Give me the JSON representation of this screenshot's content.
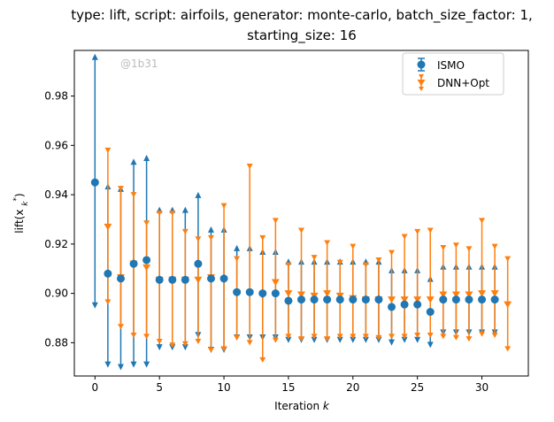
{
  "chart_data": {
    "type": "scatter",
    "title_line1": "type: lift, script: airfoils, generator: monte-carlo, batch_size_factor: 1,",
    "title_line2": "starting_size: 16",
    "xlabel": "Iteration k",
    "ylabel": "lift(x_k*)",
    "xlim": [
      -1.6,
      33.6
    ],
    "ylim": [
      0.8665,
      0.9985
    ],
    "xticks": [
      0,
      5,
      10,
      15,
      20,
      25,
      30
    ],
    "yticks": [
      0.88,
      0.9,
      0.92,
      0.94,
      0.96,
      0.98
    ],
    "ytick_labels": [
      "0.88",
      "0.90",
      "0.92",
      "0.94",
      "0.96",
      "0.98"
    ],
    "watermark": "@1b31",
    "legend_position": "top-right",
    "colors": {
      "ISMO": "#1f77b4",
      "DNN+Opt": "#ff7f0e"
    },
    "series": [
      {
        "name": "ISMO",
        "marker": "circle",
        "x": [
          0,
          1,
          2,
          3,
          4,
          5,
          6,
          7,
          8,
          9,
          10,
          11,
          12,
          13,
          14,
          15,
          16,
          17,
          18,
          19,
          20,
          21,
          22,
          23,
          24,
          25,
          26,
          27,
          28,
          29,
          30,
          31
        ],
        "y": [
          0.945,
          0.908,
          0.906,
          0.912,
          0.9135,
          0.9055,
          0.9055,
          0.9055,
          0.912,
          0.906,
          0.906,
          0.9005,
          0.9005,
          0.9,
          0.9,
          0.897,
          0.8975,
          0.8975,
          0.8975,
          0.8975,
          0.8975,
          0.8975,
          0.8975,
          0.8945,
          0.8955,
          0.8955,
          0.8925,
          0.8975,
          0.8975,
          0.8975,
          0.8975,
          0.8975
        ],
        "lo": [
          0.896,
          0.872,
          0.871,
          0.872,
          0.872,
          0.879,
          0.879,
          0.879,
          0.884,
          0.878,
          0.878,
          0.883,
          0.883,
          0.883,
          0.883,
          0.882,
          0.882,
          0.882,
          0.882,
          0.882,
          0.882,
          0.882,
          0.882,
          0.881,
          0.882,
          0.882,
          0.88,
          0.885,
          0.885,
          0.885,
          0.885,
          0.885
        ],
        "hi": [
          0.995,
          0.9425,
          0.9415,
          0.9525,
          0.954,
          0.933,
          0.933,
          0.933,
          0.939,
          0.925,
          0.925,
          0.9175,
          0.9175,
          0.916,
          0.916,
          0.912,
          0.912,
          0.912,
          0.912,
          0.912,
          0.912,
          0.912,
          0.912,
          0.9085,
          0.9085,
          0.9085,
          0.905,
          0.91,
          0.91,
          0.91,
          0.91,
          0.91
        ]
      },
      {
        "name": "DNN+Opt",
        "marker": "triangle-down",
        "x": [
          1,
          2,
          3,
          4,
          5,
          6,
          7,
          8,
          9,
          10,
          11,
          12,
          13,
          14,
          15,
          16,
          17,
          18,
          19,
          20,
          21,
          22,
          23,
          24,
          25,
          26,
          27,
          28,
          29,
          30,
          31,
          32
        ],
        "y": [
          0.927,
          0.9065,
          0.912,
          0.9105,
          0.9055,
          0.9055,
          0.9055,
          0.9055,
          0.9065,
          0.9055,
          0.9,
          0.9,
          0.899,
          0.9045,
          0.9,
          0.8995,
          0.899,
          0.9,
          0.899,
          0.898,
          0.8975,
          0.8975,
          0.8975,
          0.8975,
          0.8975,
          0.8975,
          0.8995,
          0.8995,
          0.8995,
          0.9,
          0.9,
          0.8955
        ],
        "lo": [
          0.8965,
          0.8865,
          0.883,
          0.8825,
          0.8805,
          0.879,
          0.8795,
          0.8805,
          0.877,
          0.8775,
          0.882,
          0.88,
          0.873,
          0.881,
          0.8825,
          0.8815,
          0.8825,
          0.8815,
          0.8825,
          0.8825,
          0.8825,
          0.882,
          0.8825,
          0.8825,
          0.883,
          0.883,
          0.8825,
          0.882,
          0.8815,
          0.8835,
          0.883,
          0.8775
        ],
        "hi": [
          0.958,
          0.9425,
          0.94,
          0.9285,
          0.9325,
          0.9325,
          0.925,
          0.922,
          0.9225,
          0.9355,
          0.914,
          0.9515,
          0.9225,
          0.9295,
          0.9115,
          0.9255,
          0.9145,
          0.9205,
          0.9125,
          0.919,
          0.9115,
          0.9135,
          0.9165,
          0.923,
          0.925,
          0.9255,
          0.9185,
          0.9195,
          0.918,
          0.9295,
          0.919,
          0.914
        ]
      }
    ]
  }
}
